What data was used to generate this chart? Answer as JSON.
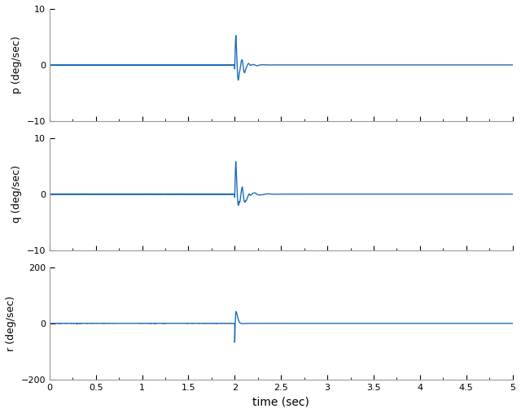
{
  "xlim": [
    0,
    5
  ],
  "ylim_pq": [
    -10,
    10
  ],
  "ylim_r": [
    -200,
    200
  ],
  "xlabel": "time (sec)",
  "ylabel_p": "p (deg/sec)",
  "ylabel_q": "q (deg/sec)",
  "ylabel_r": "r (deg/sec)",
  "line_color": "#1f6eb5",
  "line_width": 1.0,
  "xticks": [
    0,
    0.5,
    1,
    1.5,
    2,
    2.5,
    3,
    3.5,
    4,
    4.5,
    5
  ],
  "yticks_pq": [
    -10,
    0,
    10
  ],
  "yticks_r": [
    -200,
    0,
    200
  ],
  "dt": 0.0005,
  "t_start": 0,
  "t_end": 5,
  "impulse_time": 2.0,
  "bg_color": "#ffffff",
  "fig_bg": "#ffffff",
  "spine_color": "#999999"
}
